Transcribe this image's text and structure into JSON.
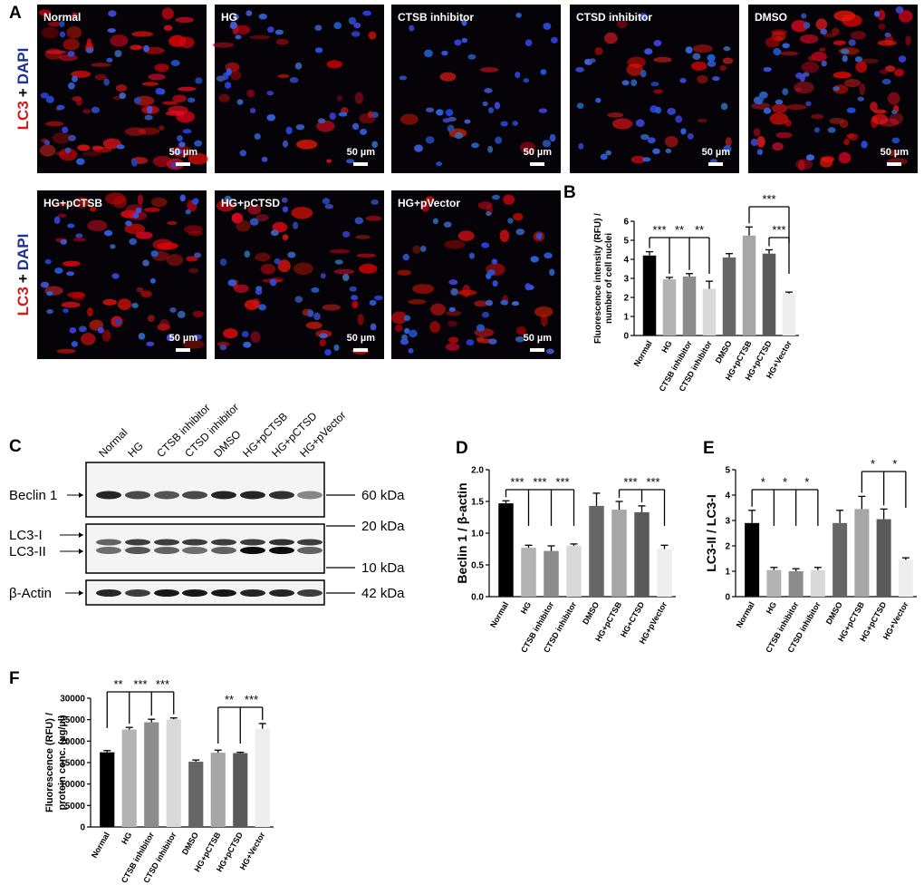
{
  "panel_labels": [
    "A",
    "B",
    "C",
    "D",
    "E",
    "F"
  ],
  "stain_label": {
    "red": "LC3",
    "plus": "+",
    "blue": "DAPI"
  },
  "images": [
    {
      "label": "Normal",
      "scale": "50 µm"
    },
    {
      "label": "HG",
      "scale": "50 µm"
    },
    {
      "label": "CTSB inhibitor",
      "scale": "50 µm"
    },
    {
      "label": "CTSD inhibitor",
      "scale": "50 µm"
    },
    {
      "label": "DMSO",
      "scale": "50 µm"
    },
    {
      "label": "HG+pCTSB",
      "scale": "50 µm"
    },
    {
      "label": "HG+pCTSD",
      "scale": "50 µm"
    },
    {
      "label": "HG+pVector",
      "scale": "50 µm"
    }
  ],
  "blot": {
    "lanes": [
      "Normal",
      "HG",
      "CTSB inhibitor",
      "CTSD inhibitor",
      "DMSO",
      "HG+pCTSB",
      "HG+pCTSD",
      "HG+pVector"
    ],
    "proteins": [
      "Beclin 1",
      "LC3-I",
      "LC3-II",
      "β-Actin"
    ],
    "markers": [
      "60 kDa",
      "20 kDa",
      "10 kDa",
      "42 kDa"
    ]
  },
  "chart_data": [
    {
      "type": "bar",
      "ylabel": [
        "Fluorescence intensity (RFU) /",
        "number of cell nuclei"
      ],
      "categories": [
        "Normal",
        "HG",
        "CTSB inhibitor",
        "CTSD inhibitor",
        "DMSO",
        "HG+pCTSB",
        "HG+pCTSD",
        "HG+Vector"
      ],
      "values": [
        4.2,
        2.95,
        3.1,
        2.45,
        4.1,
        5.25,
        4.3,
        2.2
      ],
      "errors": [
        0.2,
        0.1,
        0.15,
        0.4,
        0.2,
        0.45,
        0.2,
        0.08
      ],
      "colors": [
        "#000000",
        "#b3b3b3",
        "#8c8c8c",
        "#d9d9d9",
        "#666666",
        "#a6a6a6",
        "#5a5a5a",
        "#eeeeee"
      ],
      "ylim": [
        0,
        6
      ],
      "yticks": [
        0,
        1,
        2,
        3,
        4,
        5,
        6
      ],
      "significance": [
        [
          "***",
          "**",
          "**"
        ],
        [
          "***"
        ],
        [
          "***"
        ]
      ]
    },
    {
      "type": "bar",
      "ylabel": [
        "Beclin 1 / β-actin"
      ],
      "categories": [
        "Normal",
        "HG",
        "CTSB inhibitor",
        "CTSD inhibitor",
        "DMSO",
        "HG+pCTSB",
        "HG+CTSD",
        "HG+pVector"
      ],
      "values": [
        1.47,
        0.77,
        0.72,
        0.8,
        1.43,
        1.37,
        1.33,
        0.75
      ],
      "errors": [
        0.04,
        0.04,
        0.08,
        0.03,
        0.2,
        0.13,
        0.1,
        0.06
      ],
      "colors": [
        "#000000",
        "#b3b3b3",
        "#8c8c8c",
        "#d9d9d9",
        "#666666",
        "#a6a6a6",
        "#5a5a5a",
        "#eeeeee"
      ],
      "ylim": [
        0,
        2
      ],
      "yticks": [
        {
          "value": 0,
          "label": "0.0"
        },
        0.5,
        {
          "value": 1,
          "label": "1.0"
        },
        1.5,
        {
          "value": 2,
          "label": "2.0"
        }
      ],
      "significance": [
        [
          "***",
          "***",
          "***"
        ],
        [
          "***",
          "***"
        ]
      ]
    },
    {
      "type": "bar",
      "ylabel": [
        "LC3-II / LC3-I"
      ],
      "categories": [
        "Normal",
        "HG",
        "CTSB inhibitor",
        "CTSD inhibitor",
        "DMSO",
        "HG+pCTSB",
        "HG+pCTSD",
        "HG+Vector"
      ],
      "values": [
        2.9,
        1.05,
        1.0,
        1.05,
        2.9,
        3.45,
        3.05,
        1.45
      ],
      "errors": [
        0.5,
        0.1,
        0.1,
        0.1,
        0.5,
        0.5,
        0.4,
        0.08
      ],
      "colors": [
        "#000000",
        "#b3b3b3",
        "#8c8c8c",
        "#d9d9d9",
        "#666666",
        "#a6a6a6",
        "#5a5a5a",
        "#eeeeee"
      ],
      "ylim": [
        0,
        5
      ],
      "yticks": [
        0,
        1,
        2,
        3,
        4,
        5
      ],
      "significance": [
        [
          "*",
          "*",
          "*"
        ],
        [
          "*",
          "*"
        ]
      ]
    },
    {
      "type": "bar",
      "ylabel": [
        "Fluorescence (RFU) /",
        "protein conc. (µg/µl)"
      ],
      "categories": [
        "Normal",
        "HG",
        "CTSB inhibitor",
        "CTSD inhibitor",
        "DMSO",
        "HG+pCTSB",
        "HG+pCTSD",
        "HG+Vector"
      ],
      "values": [
        17400,
        22700,
        24400,
        25100,
        15200,
        17300,
        17200,
        22900
      ],
      "errors": [
        400,
        500,
        700,
        300,
        400,
        600,
        200,
        1200
      ],
      "colors": [
        "#000000",
        "#b3b3b3",
        "#8c8c8c",
        "#d9d9d9",
        "#666666",
        "#a6a6a6",
        "#5a5a5a",
        "#eeeeee"
      ],
      "ylim": [
        0,
        30000
      ],
      "yticks": [
        0,
        5000,
        10000,
        15000,
        20000,
        25000,
        30000
      ],
      "significance": [
        [
          "**",
          "***",
          "***"
        ],
        [
          "**",
          "***"
        ]
      ]
    }
  ]
}
